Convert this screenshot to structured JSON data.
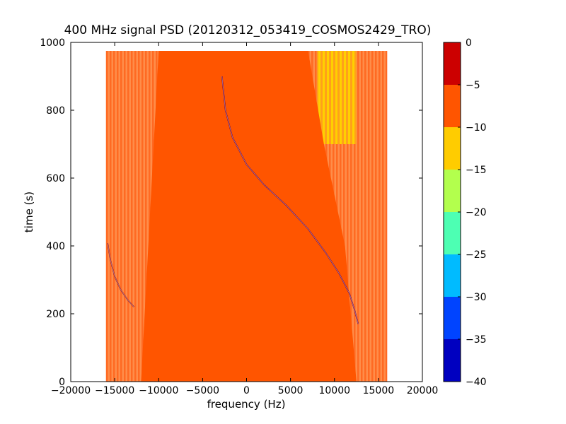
{
  "chart_data": {
    "type": "heatmap",
    "title": "400 MHz signal PSD (20120312_053419_COSMOS2429_TRO)",
    "xlabel": "frequency (Hz)",
    "ylabel": "time (s)",
    "xlim": [
      -20000,
      20000
    ],
    "ylim": [
      0,
      1000
    ],
    "x_ticks": [
      -20000,
      -15000,
      -10000,
      -5000,
      0,
      5000,
      10000,
      15000,
      20000
    ],
    "x_tick_labels": [
      "−20000",
      "−15000",
      "−10000",
      "−5000",
      "0",
      "5000",
      "10000",
      "15000",
      "20000"
    ],
    "y_ticks": [
      0,
      200,
      400,
      600,
      800,
      1000
    ],
    "y_tick_labels": [
      "0",
      "200",
      "400",
      "600",
      "800",
      "1000"
    ],
    "data_extent": {
      "x": [
        -16000,
        16000
      ],
      "y": [
        0,
        975
      ]
    },
    "colorbar": {
      "ticks": [
        0,
        -5,
        -10,
        -15,
        -20,
        -25,
        -30,
        -35,
        -40
      ],
      "tick_labels": [
        "0",
        "−5",
        "−10",
        "−15",
        "−20",
        "−25",
        "−30",
        "−35",
        "−40"
      ],
      "levels": [
        {
          "from": -5,
          "to": 0,
          "color": "#cc0000"
        },
        {
          "from": -10,
          "to": -5,
          "color": "#ff5500"
        },
        {
          "from": -15,
          "to": -10,
          "color": "#ffcc00"
        },
        {
          "from": -20,
          "to": -15,
          "color": "#b3ff4d"
        },
        {
          "from": -25,
          "to": -20,
          "color": "#4dffb3"
        },
        {
          "from": -30,
          "to": -25,
          "color": "#00bbff"
        },
        {
          "from": -35,
          "to": -30,
          "color": "#0044ff"
        },
        {
          "from": -40,
          "to": -35,
          "color": "#0000c0"
        }
      ]
    },
    "regions": [
      {
        "name": "main-band",
        "level_color": "#ff5500",
        "x_left_edge": [
          {
            "y": 0,
            "x": -12000
          },
          {
            "y": 975,
            "x": -10000
          }
        ],
        "x_right_edge": [
          {
            "y": 0,
            "x": 12500
          },
          {
            "y": 400,
            "x": 11200
          },
          {
            "y": 700,
            "x": 8800
          },
          {
            "y": 975,
            "x": 7000
          }
        ]
      },
      {
        "name": "left-edge-band",
        "level_color": "#ff8844",
        "x_range": [
          -16000,
          -11500
        ]
      },
      {
        "name": "right-edge-band",
        "level_color": "#ff8844",
        "x_range_bottom": [
          12500,
          16000
        ]
      },
      {
        "name": "yellow-patch",
        "level_color": "#ffc400",
        "x_range": [
          8000,
          12500
        ],
        "y_range": [
          700,
          975
        ]
      }
    ],
    "series": [
      {
        "type": "line",
        "color": "#6a0040",
        "points": [
          [
            -2800,
            900
          ],
          [
            -2400,
            800
          ],
          [
            -1600,
            720
          ],
          [
            0,
            640
          ],
          [
            2000,
            580
          ],
          [
            4500,
            520
          ],
          [
            7000,
            450
          ],
          [
            9000,
            380
          ],
          [
            10500,
            320
          ],
          [
            11700,
            260
          ],
          [
            12300,
            210
          ],
          [
            12700,
            170
          ]
        ]
      },
      {
        "type": "line",
        "color": "#8a1020",
        "points": [
          [
            -15800,
            408
          ],
          [
            -15500,
            360
          ],
          [
            -15000,
            310
          ],
          [
            -14300,
            270
          ],
          [
            -13500,
            240
          ],
          [
            -12800,
            220
          ]
        ]
      }
    ]
  }
}
